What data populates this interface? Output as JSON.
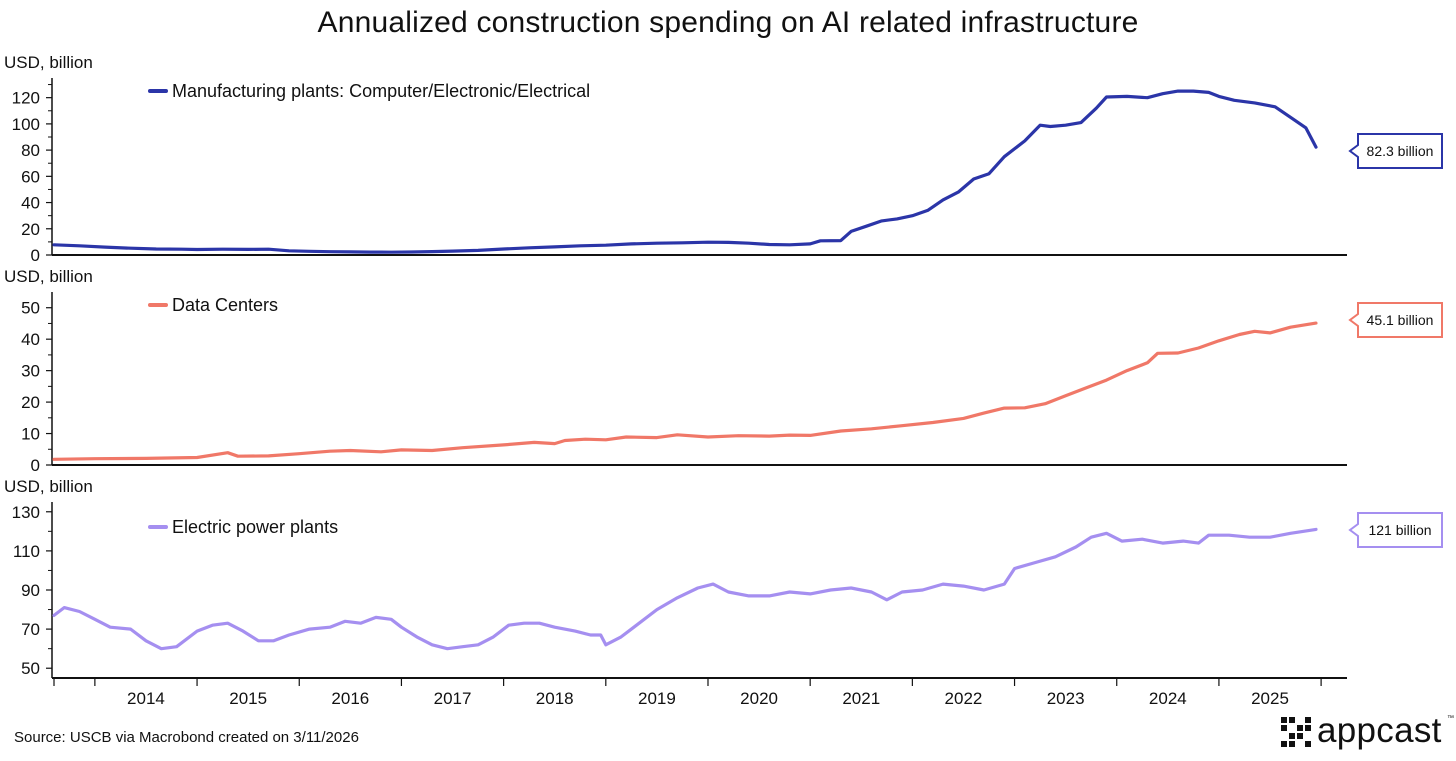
{
  "title": "Annualized construction spending on AI related infrastructure",
  "source": "Source: USCB via Macrobond created on 3/11/2026",
  "logo": {
    "text": "appcast",
    "trademark": "™"
  },
  "chart_data": {
    "type": "line",
    "x_tick_labels": [
      "2014",
      "2015",
      "2016",
      "2017",
      "2018",
      "2019",
      "2020",
      "2021",
      "2022",
      "2023",
      "2024",
      "2025"
    ],
    "x_range": [
      2013.6,
      2025.95
    ],
    "panels": [
      {
        "unit_label": "USD, billion",
        "ylim": [
          0,
          135
        ],
        "yticks": [
          0,
          20,
          40,
          60,
          80,
          100,
          120
        ],
        "minor_yticks": [
          10,
          30,
          50,
          70,
          90,
          110,
          130
        ],
        "series": [
          {
            "name": "Manufacturing plants: Computer/Electronic/Electrical",
            "color": "#2b35a8",
            "end_label": "82.3 billion",
            "points": [
              [
                2013.6,
                7.8
              ],
              [
                2013.85,
                7
              ],
              [
                2014.1,
                6
              ],
              [
                2014.35,
                5.2
              ],
              [
                2014.6,
                4.6
              ],
              [
                2014.85,
                4.4
              ],
              [
                2015.0,
                4.2
              ],
              [
                2015.25,
                4.4
              ],
              [
                2015.5,
                4.3
              ],
              [
                2015.7,
                4.4
              ],
              [
                2015.9,
                3.2
              ],
              [
                2016.1,
                2.8
              ],
              [
                2016.3,
                2.5
              ],
              [
                2016.5,
                2.4
              ],
              [
                2016.7,
                2.2
              ],
              [
                2016.9,
                2.1
              ],
              [
                2017.1,
                2.3
              ],
              [
                2017.3,
                2.6
              ],
              [
                2017.5,
                3
              ],
              [
                2017.75,
                3.5
              ],
              [
                2018.0,
                4.6
              ],
              [
                2018.25,
                5.5
              ],
              [
                2018.5,
                6.2
              ],
              [
                2018.75,
                7
              ],
              [
                2019.0,
                7.5
              ],
              [
                2019.25,
                8.5
              ],
              [
                2019.5,
                9
              ],
              [
                2019.75,
                9.3
              ],
              [
                2020.0,
                9.8
              ],
              [
                2020.2,
                9.6
              ],
              [
                2020.4,
                9
              ],
              [
                2020.6,
                8
              ],
              [
                2020.8,
                7.8
              ],
              [
                2021.0,
                8.5
              ],
              [
                2021.1,
                10.8
              ],
              [
                2021.3,
                11
              ],
              [
                2021.4,
                18
              ],
              [
                2021.55,
                22
              ],
              [
                2021.7,
                26
              ],
              [
                2021.85,
                27.5
              ],
              [
                2022.0,
                30
              ],
              [
                2022.15,
                34
              ],
              [
                2022.3,
                42
              ],
              [
                2022.45,
                48
              ],
              [
                2022.6,
                58
              ],
              [
                2022.75,
                62
              ],
              [
                2022.9,
                75
              ],
              [
                2023.1,
                87
              ],
              [
                2023.25,
                99
              ],
              [
                2023.35,
                98
              ],
              [
                2023.5,
                99
              ],
              [
                2023.65,
                101
              ],
              [
                2023.8,
                112
              ],
              [
                2023.9,
                120.5
              ],
              [
                2024.1,
                121
              ],
              [
                2024.3,
                120
              ],
              [
                2024.45,
                123
              ],
              [
                2024.6,
                125
              ],
              [
                2024.75,
                125
              ],
              [
                2024.9,
                124
              ],
              [
                2025.0,
                121
              ],
              [
                2025.15,
                118
              ],
              [
                2025.35,
                116
              ],
              [
                2025.55,
                113
              ],
              [
                2025.7,
                105
              ],
              [
                2025.85,
                97
              ],
              [
                2025.95,
                82.3
              ]
            ]
          }
        ]
      },
      {
        "unit_label": "USD, billion",
        "ylim": [
          0,
          55
        ],
        "yticks": [
          0,
          10,
          20,
          30,
          40,
          50
        ],
        "minor_yticks": [
          5,
          15,
          25,
          35,
          45
        ],
        "series": [
          {
            "name": "Data Centers",
            "color": "#f07868",
            "end_label": "45.1 billion",
            "points": [
              [
                2013.6,
                1.8
              ],
              [
                2014.0,
                2.0
              ],
              [
                2014.5,
                2.1
              ],
              [
                2015.0,
                2.4
              ],
              [
                2015.3,
                3.9
              ],
              [
                2015.4,
                2.8
              ],
              [
                2015.7,
                2.9
              ],
              [
                2016.0,
                3.6
              ],
              [
                2016.3,
                4.4
              ],
              [
                2016.5,
                4.6
              ],
              [
                2016.8,
                4.2
              ],
              [
                2017.0,
                4.8
              ],
              [
                2017.3,
                4.6
              ],
              [
                2017.6,
                5.5
              ],
              [
                2018.0,
                6.4
              ],
              [
                2018.3,
                7.2
              ],
              [
                2018.5,
                6.8
              ],
              [
                2018.6,
                7.8
              ],
              [
                2018.8,
                8.2
              ],
              [
                2019.0,
                8.0
              ],
              [
                2019.2,
                8.9
              ],
              [
                2019.5,
                8.7
              ],
              [
                2019.7,
                9.6
              ],
              [
                2020.0,
                8.9
              ],
              [
                2020.3,
                9.3
              ],
              [
                2020.6,
                9.2
              ],
              [
                2020.8,
                9.5
              ],
              [
                2021.0,
                9.4
              ],
              [
                2021.3,
                10.8
              ],
              [
                2021.6,
                11.5
              ],
              [
                2021.9,
                12.5
              ],
              [
                2022.2,
                13.5
              ],
              [
                2022.5,
                14.8
              ],
              [
                2022.7,
                16.5
              ],
              [
                2022.9,
                18.1
              ],
              [
                2023.1,
                18.2
              ],
              [
                2023.3,
                19.5
              ],
              [
                2023.5,
                22
              ],
              [
                2023.7,
                24.5
              ],
              [
                2023.9,
                27
              ],
              [
                2024.1,
                30
              ],
              [
                2024.3,
                32.5
              ],
              [
                2024.4,
                35.5
              ],
              [
                2024.6,
                35.6
              ],
              [
                2024.8,
                37.2
              ],
              [
                2025.0,
                39.5
              ],
              [
                2025.2,
                41.5
              ],
              [
                2025.35,
                42.5
              ],
              [
                2025.5,
                42
              ],
              [
                2025.7,
                43.8
              ],
              [
                2025.95,
                45.1
              ]
            ]
          }
        ]
      },
      {
        "unit_label": "USD, billion",
        "ylim": [
          45,
          135
        ],
        "yticks": [
          50,
          70,
          90,
          110,
          130
        ],
        "minor_yticks": [
          60,
          80,
          100,
          120
        ],
        "series": [
          {
            "name": "Electric power plants",
            "color": "#a58ff0",
            "end_label": "121 billion",
            "points": [
              [
                2013.6,
                77
              ],
              [
                2013.7,
                81
              ],
              [
                2013.85,
                79
              ],
              [
                2014.0,
                75
              ],
              [
                2014.15,
                71
              ],
              [
                2014.35,
                70
              ],
              [
                2014.5,
                64
              ],
              [
                2014.65,
                60
              ],
              [
                2014.8,
                61
              ],
              [
                2015.0,
                69
              ],
              [
                2015.15,
                72
              ],
              [
                2015.3,
                73
              ],
              [
                2015.45,
                69
              ],
              [
                2015.6,
                64
              ],
              [
                2015.75,
                64
              ],
              [
                2015.9,
                67
              ],
              [
                2016.1,
                70
              ],
              [
                2016.3,
                71
              ],
              [
                2016.45,
                74
              ],
              [
                2016.6,
                73
              ],
              [
                2016.75,
                76
              ],
              [
                2016.9,
                75
              ],
              [
                2017.0,
                71
              ],
              [
                2017.15,
                66
              ],
              [
                2017.3,
                62
              ],
              [
                2017.45,
                60
              ],
              [
                2017.6,
                61
              ],
              [
                2017.75,
                62
              ],
              [
                2017.9,
                66
              ],
              [
                2018.05,
                72
              ],
              [
                2018.2,
                73
              ],
              [
                2018.35,
                73
              ],
              [
                2018.5,
                71
              ],
              [
                2018.7,
                69
              ],
              [
                2018.85,
                67
              ],
              [
                2018.95,
                67
              ],
              [
                2019.0,
                62
              ],
              [
                2019.15,
                66
              ],
              [
                2019.3,
                72
              ],
              [
                2019.5,
                80
              ],
              [
                2019.7,
                86
              ],
              [
                2019.9,
                91
              ],
              [
                2020.05,
                93
              ],
              [
                2020.2,
                89
              ],
              [
                2020.4,
                87
              ],
              [
                2020.6,
                87
              ],
              [
                2020.8,
                89
              ],
              [
                2021.0,
                88
              ],
              [
                2021.2,
                90
              ],
              [
                2021.4,
                91
              ],
              [
                2021.6,
                89
              ],
              [
                2021.75,
                85
              ],
              [
                2021.9,
                89
              ],
              [
                2022.1,
                90
              ],
              [
                2022.3,
                93
              ],
              [
                2022.5,
                92
              ],
              [
                2022.7,
                90
              ],
              [
                2022.9,
                93
              ],
              [
                2023.0,
                101
              ],
              [
                2023.2,
                104
              ],
              [
                2023.4,
                107
              ],
              [
                2023.6,
                112
              ],
              [
                2023.75,
                117
              ],
              [
                2023.9,
                119
              ],
              [
                2024.05,
                115
              ],
              [
                2024.25,
                116
              ],
              [
                2024.45,
                114
              ],
              [
                2024.65,
                115
              ],
              [
                2024.8,
                114
              ],
              [
                2024.9,
                118
              ],
              [
                2025.1,
                118
              ],
              [
                2025.3,
                117
              ],
              [
                2025.5,
                117
              ],
              [
                2025.7,
                119
              ],
              [
                2025.95,
                121
              ]
            ]
          }
        ]
      }
    ]
  }
}
